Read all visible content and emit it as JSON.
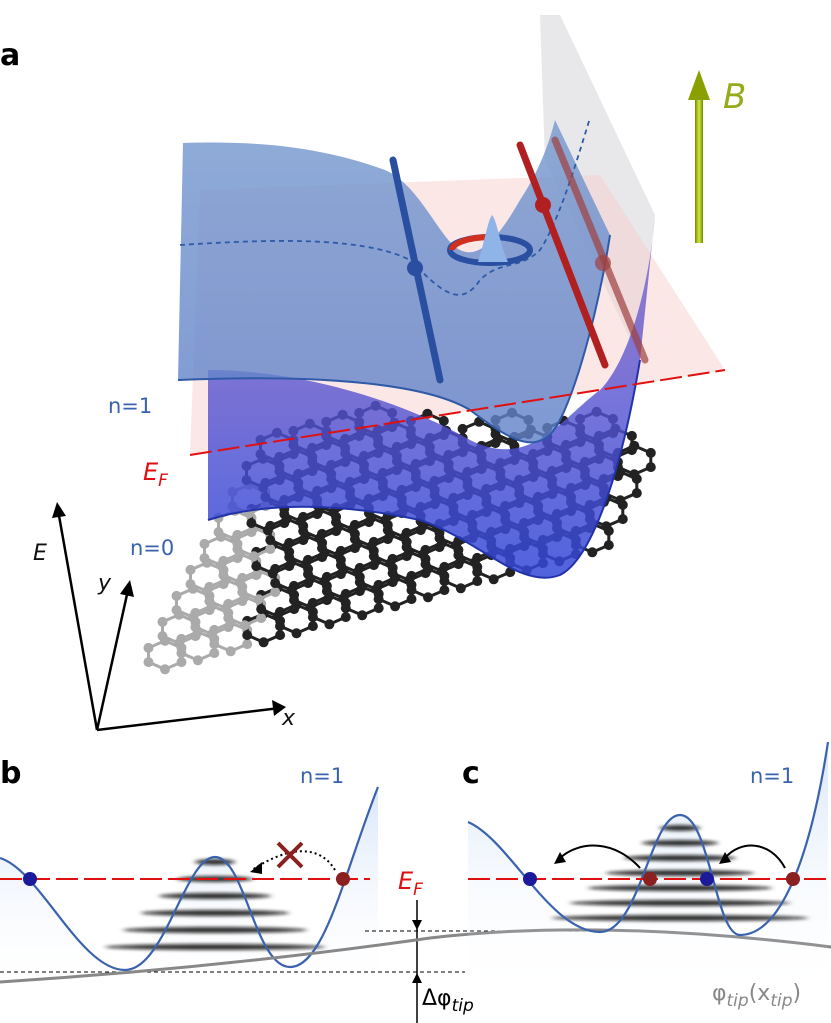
{
  "panel_a": {
    "label": "a",
    "field": "B",
    "level_upper": "n=1",
    "fermi": {
      "main": "E",
      "sub": "F"
    },
    "level_lower": "n=0",
    "axes": {
      "energy": "E",
      "y": "y",
      "x": "x"
    }
  },
  "panel_b": {
    "label": "b",
    "level": "n=1",
    "fermi": {
      "main": "E",
      "sub": "F"
    },
    "shift": {
      "main": "Δφ",
      "sub": "tip"
    }
  },
  "panel_c": {
    "label": "c",
    "level": "n=1",
    "potential": [
      "φ",
      "tip",
      "(x",
      "tip",
      ")"
    ]
  }
}
